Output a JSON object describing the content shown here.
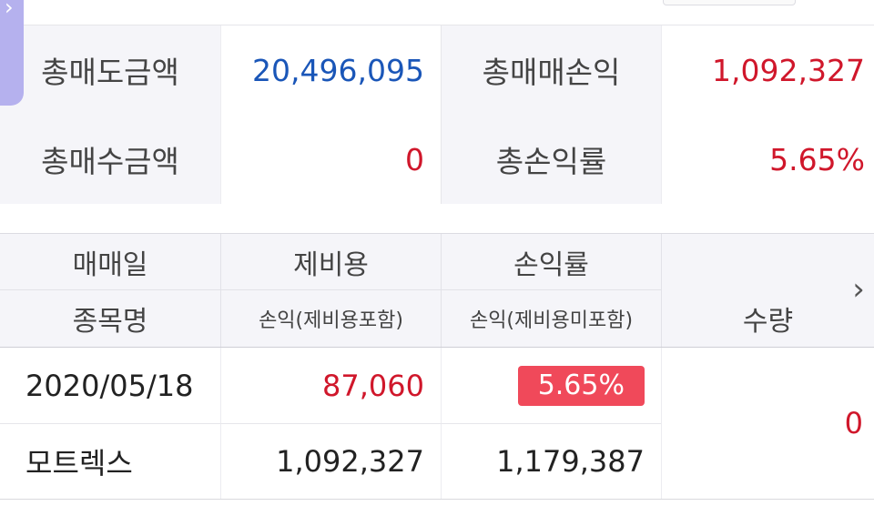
{
  "nav": {
    "side_tab_icon": "chevron-right-icon",
    "next_icon": "chevron-right-icon"
  },
  "summary": {
    "total_sell_amount_label": "총매도금액",
    "total_sell_amount": "20,496,095",
    "total_trade_pl_label": "총매매손익",
    "total_trade_pl": "1,092,327",
    "total_buy_amount_label": "총매수금액",
    "total_buy_amount": "0",
    "total_return_label": "총손익률",
    "total_return": "5.65%"
  },
  "table": {
    "headers": {
      "trade_date": "매매일",
      "fees": "제비용",
      "return_rate": "손익률",
      "stock_name": "종목명",
      "pl_incl_fees": "손익(제비용포함)",
      "pl_excl_fees": "손익(제비용미포함)",
      "quantity": "수량"
    },
    "rows": [
      {
        "trade_date": "2020/05/18",
        "fees": "87,060",
        "return_rate": "5.65%",
        "stock_name": "모트렉스",
        "pl_incl_fees": "1,092,327",
        "pl_excl_fees": "1,179,387",
        "quantity": "0"
      }
    ]
  },
  "colors": {
    "accent_purple": "#b5b1ee",
    "positive_red": "#d0172b",
    "amount_blue": "#1a56b8",
    "badge_red": "#f0495a"
  }
}
